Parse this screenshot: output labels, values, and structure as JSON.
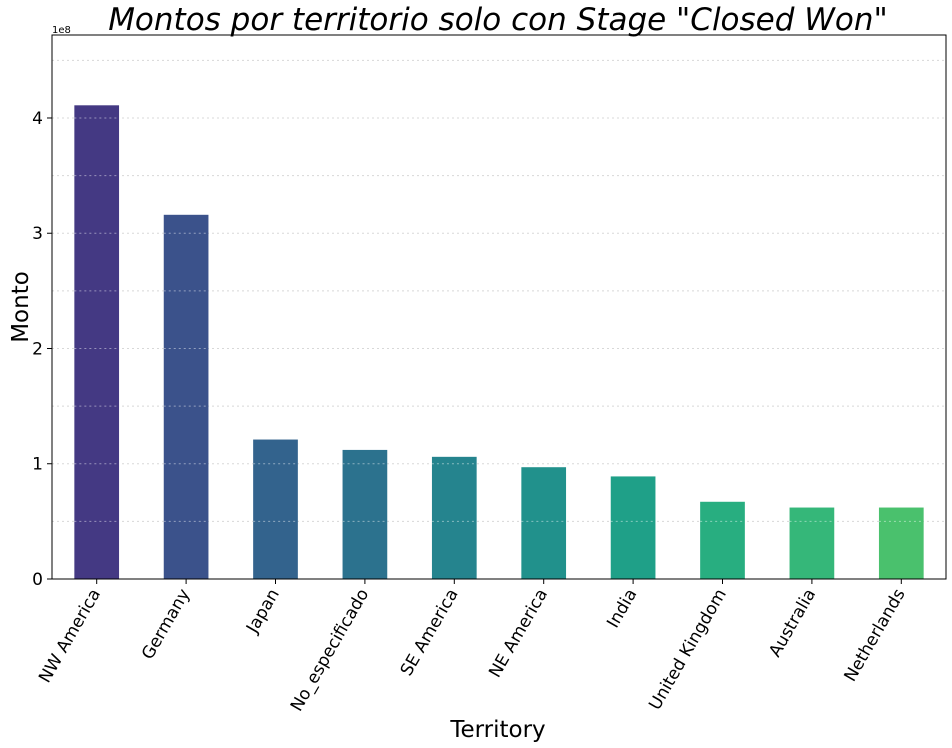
{
  "chart_data": {
    "type": "bar",
    "title": "Montos por territorio solo con Stage \"Closed Won\"",
    "xlabel": "Territory",
    "ylabel": "Monto",
    "y_offset_label": "1e8",
    "ylim": [
      0,
      4.72
    ],
    "y_ticks": [
      0,
      1,
      2,
      3,
      4
    ],
    "grid": true,
    "categories": [
      "NW America",
      "Germany",
      "Japan",
      "No_especificado",
      "SE America",
      "NE America",
      "India",
      "United Kingdom",
      "Australia",
      "Netherlands"
    ],
    "values": [
      4.11,
      3.16,
      1.21,
      1.12,
      1.06,
      0.97,
      0.89,
      0.67,
      0.62,
      0.62
    ],
    "colors": [
      "#443983",
      "#3b528b",
      "#33638d",
      "#2c728e",
      "#25848e",
      "#21918c",
      "#1fa088",
      "#28ae80",
      "#35b779",
      "#4ac16d"
    ]
  }
}
